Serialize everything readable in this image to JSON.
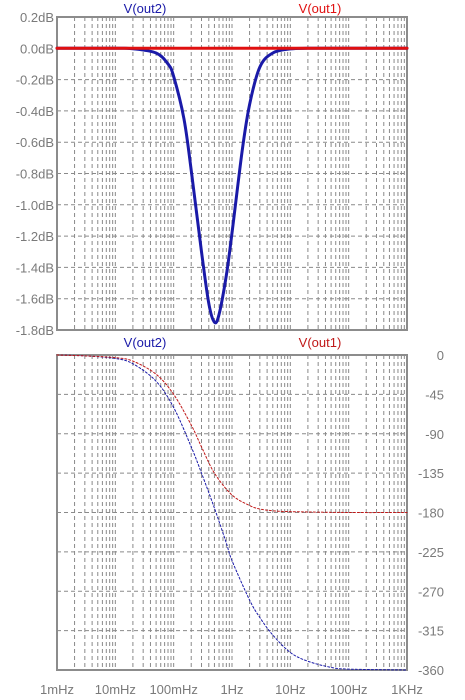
{
  "chart_data": [
    {
      "type": "line",
      "title": "",
      "xlabel": "",
      "ylabel": "",
      "x_scale": "log",
      "xlim_hz": [
        0.001,
        1000
      ],
      "ylim": [
        -1.8,
        0.2
      ],
      "y_ticks": [
        "0.2dB",
        "0.0dB",
        "-0.2dB",
        "-0.4dB",
        "-0.6dB",
        "-0.8dB",
        "-1.0dB",
        "-1.2dB",
        "-1.4dB",
        "-1.6dB",
        "-1.8dB"
      ],
      "y_tick_values": [
        0.2,
        0.0,
        -0.2,
        -0.4,
        -0.6,
        -0.8,
        -1.0,
        -1.2,
        -1.4,
        -1.6,
        -1.8
      ],
      "grid": true,
      "series": [
        {
          "name": "V(out2)",
          "color": "#1a1aa8",
          "x": [
            0.001,
            0.01,
            0.02,
            0.05,
            0.08,
            0.1,
            0.15,
            0.2,
            0.3,
            0.4,
            0.5,
            0.6,
            0.8,
            1,
            1.5,
            2,
            3,
            5,
            10,
            20,
            50,
            100,
            1000
          ],
          "y": [
            0,
            0,
            -0.003,
            -0.03,
            -0.1,
            -0.18,
            -0.45,
            -0.78,
            -1.3,
            -1.63,
            -1.75,
            -1.7,
            -1.45,
            -1.18,
            -0.65,
            -0.36,
            -0.12,
            -0.03,
            -0.004,
            0,
            0,
            0,
            0
          ]
        },
        {
          "name": "V(out1)",
          "color": "#e01010",
          "x": [
            0.001,
            1000
          ],
          "y": [
            0,
            0
          ]
        }
      ]
    },
    {
      "type": "line",
      "title": "",
      "xlabel": "",
      "ylabel": "",
      "x_scale": "log",
      "xlim_hz": [
        0.001,
        1000
      ],
      "ylim": [
        -360,
        0
      ],
      "y_axis_side": "right",
      "y_ticks": [
        "0",
        "-45",
        "-90",
        "-135",
        "-180",
        "-225",
        "-270",
        "-315",
        "-360"
      ],
      "y_tick_values": [
        0,
        -45,
        -90,
        -135,
        -180,
        -225,
        -270,
        -315,
        -360
      ],
      "x_ticks": [
        "1mHz",
        "10mHz",
        "100mHz",
        "1Hz",
        "10Hz",
        "100Hz",
        "1KHz"
      ],
      "x_tick_values": [
        0.001,
        0.01,
        0.1,
        1,
        10,
        100,
        1000
      ],
      "grid": true,
      "series": [
        {
          "name": "V(out2)",
          "color": "#1a1aa8",
          "x": [
            0.001,
            0.003,
            0.01,
            0.02,
            0.05,
            0.1,
            0.2,
            0.3,
            0.5,
            0.8,
            1,
            2,
            3,
            5,
            10,
            20,
            50,
            100,
            1000
          ],
          "y": [
            0,
            -1,
            -4,
            -10,
            -30,
            -60,
            -105,
            -135,
            -175,
            -215,
            -235,
            -280,
            -300,
            -320,
            -340,
            -350,
            -357,
            -359,
            -360
          ]
        },
        {
          "name": "V(out1)",
          "color": "#c01818",
          "x": [
            0.001,
            0.003,
            0.01,
            0.02,
            0.05,
            0.1,
            0.2,
            0.3,
            0.5,
            1,
            2,
            3,
            5,
            10,
            100,
            1000
          ],
          "y": [
            0,
            -1,
            -3,
            -7,
            -22,
            -45,
            -80,
            -105,
            -135,
            -160,
            -172,
            -176,
            -178,
            -179,
            -180,
            -180
          ]
        }
      ]
    }
  ]
}
